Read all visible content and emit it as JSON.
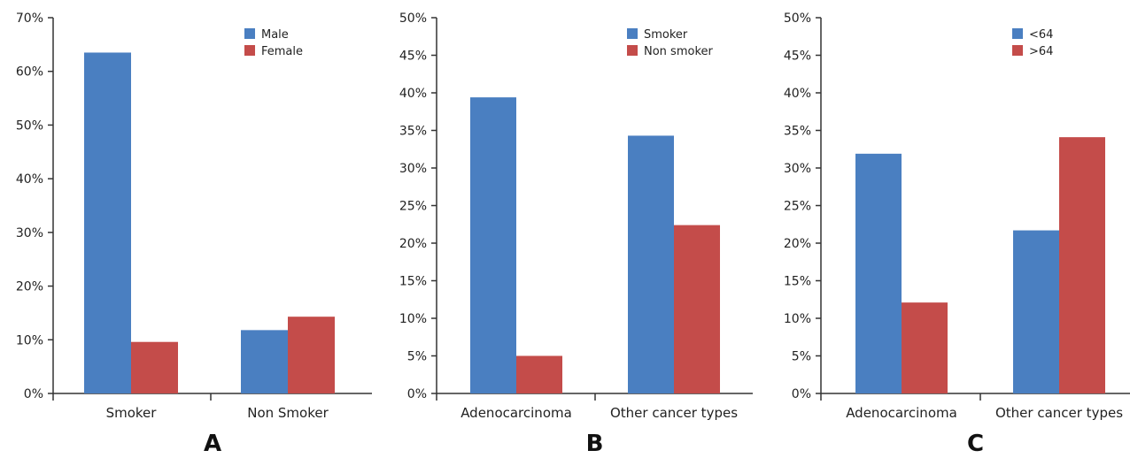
{
  "colors": {
    "blue": "#4a7fc1",
    "red": "#c44c4a"
  },
  "chart_data": [
    {
      "type": "bar",
      "panel_label": "A",
      "categories": [
        "Smoker",
        "Non Smoker"
      ],
      "series": [
        {
          "name": "Male",
          "color": "#4a7fc1",
          "values": [
            63.5,
            11.8
          ]
        },
        {
          "name": "Female",
          "color": "#c44c4a",
          "values": [
            9.6,
            14.3
          ]
        }
      ],
      "ylim": [
        0,
        70
      ],
      "yticks": [
        0,
        10,
        20,
        30,
        40,
        50,
        60,
        70
      ],
      "ytick_labels": [
        "0%",
        "10%",
        "20%",
        "30%",
        "40%",
        "50%",
        "60%",
        "70%"
      ],
      "legend_position": "top-right",
      "grid": false
    },
    {
      "type": "bar",
      "panel_label": "B",
      "categories": [
        "Adenocarcinoma",
        "Other cancer types"
      ],
      "series": [
        {
          "name": "Smoker",
          "color": "#4a7fc1",
          "values": [
            39.4,
            34.3
          ]
        },
        {
          "name": "Non smoker",
          "color": "#c44c4a",
          "values": [
            5.0,
            22.4
          ]
        }
      ],
      "ylim": [
        0,
        50
      ],
      "yticks": [
        0,
        5,
        10,
        15,
        20,
        25,
        30,
        35,
        40,
        45,
        50
      ],
      "ytick_labels": [
        "0%",
        "5%",
        "10%",
        "15%",
        "20%",
        "25%",
        "30%",
        "35%",
        "40%",
        "45%",
        "50%"
      ],
      "legend_position": "top-right",
      "grid": false
    },
    {
      "type": "bar",
      "panel_label": "C",
      "categories": [
        "Adenocarcinoma",
        "Other cancer types"
      ],
      "series": [
        {
          "name": "<64",
          "color": "#4a7fc1",
          "values": [
            31.9,
            21.7
          ]
        },
        {
          "name": ">64",
          "color": "#c44c4a",
          "values": [
            12.1,
            34.1
          ]
        }
      ],
      "ylim": [
        0,
        50
      ],
      "yticks": [
        0,
        5,
        10,
        15,
        20,
        25,
        30,
        35,
        40,
        45,
        50
      ],
      "ytick_labels": [
        "0%",
        "5%",
        "10%",
        "15%",
        "20%",
        "25%",
        "30%",
        "35%",
        "40%",
        "45%",
        "50%"
      ],
      "legend_position": "top-right",
      "grid": false
    }
  ]
}
